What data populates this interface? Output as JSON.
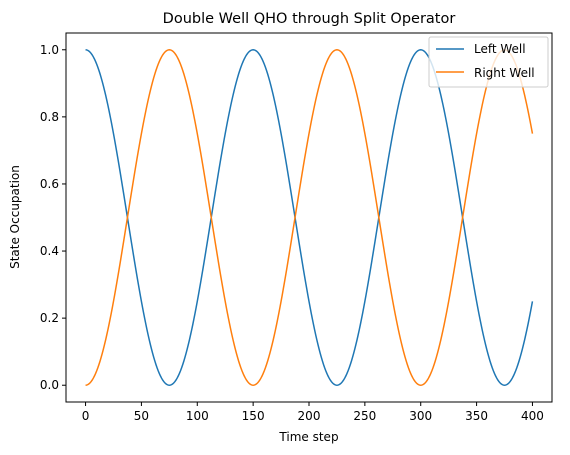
{
  "chart_data": {
    "type": "line",
    "title": "Double Well QHO through Split Operator",
    "xlabel": "Time step",
    "ylabel": "State Occupation",
    "xlim": [
      -17.5,
      417.5
    ],
    "ylim": [
      -0.05,
      1.05
    ],
    "xticks": [
      0,
      50,
      100,
      150,
      200,
      250,
      300,
      350,
      400
    ],
    "yticks": [
      0.0,
      0.2,
      0.4,
      0.6,
      0.8,
      1.0
    ],
    "xtick_labels": [
      "0",
      "50",
      "100",
      "150",
      "200",
      "250",
      "300",
      "350",
      "400"
    ],
    "ytick_labels": [
      "0.0",
      "0.2",
      "0.4",
      "0.6",
      "0.8",
      "1.0"
    ],
    "legend_position": "top-right",
    "period_steps": 150,
    "n_steps": 400,
    "series": [
      {
        "name": "Left Well",
        "color": "#1f77b4",
        "x": [
          0,
          25,
          50,
          75,
          100,
          125,
          150,
          175,
          200,
          225,
          250,
          275,
          300,
          325,
          350,
          375,
          400
        ],
        "values": [
          1.0,
          0.75,
          0.25,
          0.0,
          0.25,
          0.75,
          1.0,
          0.75,
          0.25,
          0.0,
          0.25,
          0.75,
          1.0,
          0.75,
          0.25,
          0.0,
          0.23
        ]
      },
      {
        "name": "Right Well",
        "color": "#ff7f0e",
        "x": [
          0,
          25,
          50,
          75,
          100,
          125,
          150,
          175,
          200,
          225,
          250,
          275,
          300,
          325,
          350,
          375,
          400
        ],
        "values": [
          0.0,
          0.25,
          0.75,
          1.0,
          0.75,
          0.25,
          0.0,
          0.25,
          0.75,
          1.0,
          0.75,
          0.25,
          0.0,
          0.25,
          0.75,
          1.0,
          0.77
        ]
      }
    ]
  }
}
